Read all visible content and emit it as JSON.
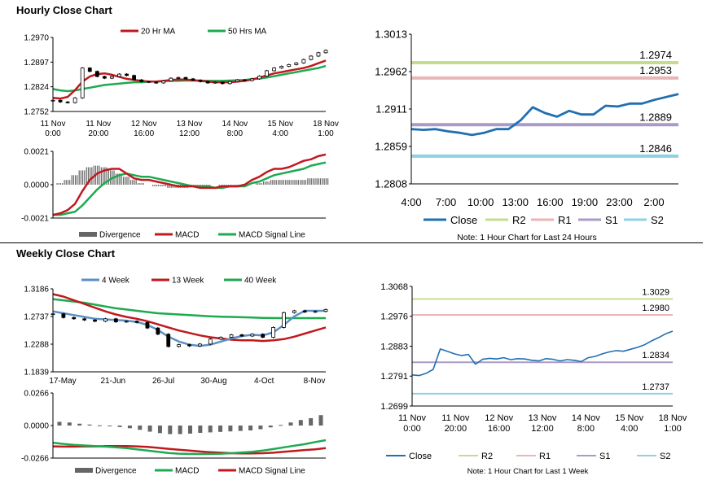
{
  "sections": {
    "hourly_title": "Hourly Close Chart",
    "weekly_title": "Weekly Close Chart"
  },
  "colors": {
    "close": "#1f6fb2",
    "ma20": "#c0191e",
    "ma50": "#1daa50",
    "r2": "#c5dc8e",
    "r1": "#e9b6b6",
    "s1": "#a99ac8",
    "s2": "#8fd0e3",
    "divergence": "#666666",
    "candle": "#000000"
  },
  "chart_data": [
    {
      "id": "hourly-price",
      "type": "candlestick",
      "ylim": [
        1.2752,
        1.297
      ],
      "yticks": [
        "1.2970",
        "1.2897",
        "1.2824",
        "1.2752"
      ],
      "xticks": [
        [
          "11 Nov",
          "0:00"
        ],
        [
          "11 Nov",
          "20:00"
        ],
        [
          "12 Nov",
          "16:00"
        ],
        [
          "13 Nov",
          "12:00"
        ],
        [
          "14 Nov",
          "8:00"
        ],
        [
          "15 Nov",
          "4:00"
        ],
        [
          "18 Nov",
          "1:00"
        ]
      ],
      "legend": [
        "20 Hr MA",
        "50 Hrs MA"
      ],
      "close": [
        1.2785,
        1.278,
        1.2778,
        1.2792,
        1.288,
        1.287,
        1.2855,
        1.285,
        1.2855,
        1.2862,
        1.2858,
        1.2845,
        1.284,
        1.2838,
        1.2836,
        1.2842,
        1.285,
        1.2852,
        1.2848,
        1.2844,
        1.284,
        1.2836,
        1.2838,
        1.2834,
        1.284,
        1.2845,
        1.2843,
        1.2848,
        1.2856,
        1.2872,
        1.288,
        1.2885,
        1.289,
        1.2895,
        1.2905,
        1.2915,
        1.2925,
        1.2932
      ],
      "ma20": [
        1.2792,
        1.279,
        1.2795,
        1.2815,
        1.284,
        1.2855,
        1.2862,
        1.2864,
        1.286,
        1.2854,
        1.2848,
        1.2845,
        1.2842,
        1.284,
        1.284,
        1.2842,
        1.2845,
        1.2846,
        1.2846,
        1.2844,
        1.2842,
        1.284,
        1.2838,
        1.2838,
        1.2838,
        1.284,
        1.2842,
        1.2846,
        1.2852,
        1.2858,
        1.2864,
        1.2868,
        1.2872,
        1.2876,
        1.288,
        1.2886,
        1.2894,
        1.2902
      ],
      "ma50": [
        1.2818,
        1.2814,
        1.2812,
        1.2814,
        1.2818,
        1.2822,
        1.2826,
        1.283,
        1.2832,
        1.2834,
        1.2836,
        1.2838,
        1.2838,
        1.284,
        1.284,
        1.2841,
        1.2842,
        1.2842,
        1.2843,
        1.2843,
        1.2843,
        1.2842,
        1.2842,
        1.2842,
        1.2843,
        1.2844,
        1.2845,
        1.2847,
        1.2849,
        1.2852,
        1.2856,
        1.286,
        1.2864,
        1.2868,
        1.2872,
        1.2876,
        1.288,
        1.2886
      ]
    },
    {
      "id": "hourly-macd",
      "type": "line+bar",
      "ylim": [
        -0.0021,
        0.0021
      ],
      "yticks": [
        "0.0021",
        "0.0000",
        "-0.0021"
      ],
      "legend": [
        "Divergence",
        "MACD",
        "MACD Signal Line"
      ],
      "divergence": [
        0.0,
        0.0001,
        0.0003,
        0.0006,
        0.0009,
        0.0011,
        0.0012,
        0.0011,
        0.0009,
        0.0007,
        0.0005,
        0.0003,
        0.0001,
        0.0,
        -0.0001,
        -0.0001,
        -0.0002,
        -0.0002,
        -0.0002,
        -0.0001,
        -0.0001,
        -0.0001,
        0.0,
        -0.0001,
        -0.0001,
        -0.0001,
        -0.0001,
        0.0,
        0.0001,
        0.0002,
        0.0003,
        0.0003,
        0.0003,
        0.0003,
        0.0003,
        0.0004,
        0.0004,
        0.0004
      ],
      "macd": [
        -0.0019,
        -0.0018,
        -0.0016,
        -0.0012,
        -0.0004,
        0.0003,
        0.0007,
        0.0009,
        0.001,
        0.001,
        0.0007,
        0.0004,
        0.0003,
        0.0003,
        0.0002,
        0.0001,
        0.0,
        -0.0001,
        -0.0001,
        -0.0001,
        -0.0002,
        -0.0002,
        -0.0002,
        -0.0001,
        -0.0001,
        -0.0001,
        0.0,
        0.0003,
        0.0005,
        0.0008,
        0.001,
        0.001,
        0.0011,
        0.0013,
        0.0015,
        0.0016,
        0.0018,
        0.0019
      ],
      "signal": [
        -0.0019,
        -0.0019,
        -0.0018,
        -0.0017,
        -0.0013,
        -0.0008,
        -0.0003,
        0.0001,
        0.0004,
        0.0006,
        0.0007,
        0.0006,
        0.0005,
        0.0005,
        0.0004,
        0.0003,
        0.0002,
        0.0001,
        0.0,
        -0.0001,
        -0.0001,
        -0.0001,
        -0.0002,
        -0.0002,
        -0.0001,
        -0.0001,
        -0.0001,
        0.0001,
        0.0002,
        0.0004,
        0.0006,
        0.0007,
        0.0008,
        0.0009,
        0.001,
        0.0012,
        0.0013,
        0.0014
      ]
    },
    {
      "id": "hourly-24h",
      "type": "line",
      "ylim": [
        1.2808,
        1.3013
      ],
      "yticks": [
        "1.3013",
        "1.2962",
        "1.2911",
        "1.2859",
        "1.2808"
      ],
      "xticks": [
        "4:00",
        "7:00",
        "10:00",
        "13:00",
        "16:00",
        "19:00",
        "23:00",
        "2:00"
      ],
      "legend": [
        "Close",
        "R2",
        "R1",
        "S1",
        "S2"
      ],
      "note": "Note: 1 Hour Chart for Last 24 Hours",
      "levels": {
        "R2": 1.2974,
        "R1": 1.2953,
        "S1": 1.2889,
        "S2": 1.2846
      },
      "level_labels": {
        "R2": "1.2974",
        "R1": "1.2953",
        "S1": "1.2889",
        "S2": "1.2846"
      },
      "close": [
        1.2883,
        1.2882,
        1.2883,
        1.288,
        1.2878,
        1.2875,
        1.2878,
        1.2883,
        1.2883,
        1.2895,
        1.2913,
        1.2905,
        1.29,
        1.2908,
        1.2903,
        1.2903,
        1.2915,
        1.2914,
        1.2918,
        1.2918,
        1.2923,
        1.2927,
        1.2931
      ]
    },
    {
      "id": "weekly-price",
      "type": "candlestick",
      "ylim": [
        1.1839,
        1.3186
      ],
      "yticks": [
        "1.3186",
        "1.2737",
        "1.2288",
        "1.1839"
      ],
      "xticks": [
        "17-May",
        "21-Jun",
        "26-Jul",
        "30-Aug",
        "4-Oct",
        "8-Nov"
      ],
      "legend": [
        "4 Week",
        "13 Week",
        "40 Week"
      ],
      "close": [
        1.278,
        1.272,
        1.27,
        1.268,
        1.266,
        1.27,
        1.265,
        1.266,
        1.264,
        1.255,
        1.245,
        1.225,
        1.228,
        1.226,
        1.229,
        1.237,
        1.24,
        1.244,
        1.242,
        1.245,
        1.24,
        1.256,
        1.28,
        1.283,
        1.281,
        1.282,
        1.285
      ],
      "ma4": [
        1.282,
        1.279,
        1.276,
        1.273,
        1.27,
        1.269,
        1.268,
        1.267,
        1.265,
        1.26,
        1.252,
        1.241,
        1.233,
        1.228,
        1.226,
        1.228,
        1.233,
        1.238,
        1.242,
        1.244,
        1.243,
        1.248,
        1.26,
        1.274,
        1.283,
        1.283,
        1.283
      ],
      "ma13": [
        1.31,
        1.306,
        1.3,
        1.294,
        1.288,
        1.282,
        1.277,
        1.273,
        1.27,
        1.266,
        1.261,
        1.256,
        1.251,
        1.247,
        1.243,
        1.24,
        1.238,
        1.236,
        1.235,
        1.235,
        1.234,
        1.235,
        1.237,
        1.241,
        1.246,
        1.251,
        1.256
      ],
      "ma40": [
        1.302,
        1.3,
        1.298,
        1.296,
        1.293,
        1.29,
        1.287,
        1.285,
        1.283,
        1.281,
        1.279,
        1.278,
        1.277,
        1.276,
        1.275,
        1.274,
        1.2735,
        1.273,
        1.2725,
        1.272,
        1.2715,
        1.2712,
        1.271,
        1.271,
        1.271,
        1.271,
        1.271
      ]
    },
    {
      "id": "weekly-macd",
      "type": "line+bar",
      "ylim": [
        -0.0266,
        0.0266
      ],
      "yticks": [
        "0.0266",
        "0.0000",
        "-0.0266"
      ],
      "legend": [
        "Divergence",
        "MACD",
        "MACD Signal Line"
      ],
      "divergence": [
        0.003,
        0.0025,
        0.0015,
        0.0008,
        0.0002,
        -0.0005,
        -0.0012,
        -0.0022,
        -0.0035,
        -0.005,
        -0.0062,
        -0.007,
        -0.007,
        -0.0066,
        -0.006,
        -0.0056,
        -0.0052,
        -0.0048,
        -0.0044,
        -0.004,
        -0.003,
        -0.0015,
        0.0005,
        0.0025,
        0.0045,
        0.006,
        0.0085
      ],
      "macd": [
        -0.014,
        -0.015,
        -0.0158,
        -0.0163,
        -0.0168,
        -0.0172,
        -0.0178,
        -0.0185,
        -0.0195,
        -0.0205,
        -0.0215,
        -0.0225,
        -0.023,
        -0.0232,
        -0.0233,
        -0.0232,
        -0.023,
        -0.0226,
        -0.022,
        -0.0214,
        -0.0205,
        -0.0192,
        -0.0178,
        -0.0165,
        -0.0152,
        -0.0135,
        -0.012
      ],
      "signal": [
        -0.017,
        -0.0172,
        -0.0172,
        -0.017,
        -0.017,
        -0.0168,
        -0.0168,
        -0.0168,
        -0.017,
        -0.0175,
        -0.0182,
        -0.019,
        -0.0198,
        -0.0205,
        -0.0212,
        -0.0218,
        -0.0222,
        -0.0226,
        -0.0228,
        -0.0228,
        -0.0226,
        -0.0222,
        -0.0215,
        -0.0208,
        -0.02,
        -0.0195,
        -0.0185
      ]
    },
    {
      "id": "weekly-1w",
      "type": "line",
      "ylim": [
        1.2699,
        1.3068
      ],
      "yticks": [
        "1.3068",
        "1.2976",
        "1.2883",
        "1.2791",
        "1.2699"
      ],
      "xticks": [
        [
          "11 Nov",
          "0:00"
        ],
        [
          "11 Nov",
          "20:00"
        ],
        [
          "12 Nov",
          "16:00"
        ],
        [
          "13 Nov",
          "12:00"
        ],
        [
          "14 Nov",
          "8:00"
        ],
        [
          "15 Nov",
          "4:00"
        ],
        [
          "18 Nov",
          "1:00"
        ]
      ],
      "legend": [
        "Close",
        "R2",
        "R1",
        "S1",
        "S2"
      ],
      "note": "Note: 1 Hour Chart for Last 1 Week",
      "levels": {
        "R2": 1.3029,
        "R1": 1.298,
        "S1": 1.2834,
        "S2": 1.2737
      },
      "level_labels": {
        "R2": "1.3029",
        "R1": "1.2980",
        "S1": "1.2834",
        "S2": "1.2737"
      },
      "close": [
        1.2795,
        1.2793,
        1.28,
        1.2812,
        1.2875,
        1.2868,
        1.286,
        1.2855,
        1.2858,
        1.2828,
        1.2843,
        1.2846,
        1.2844,
        1.2848,
        1.2842,
        1.2845,
        1.2844,
        1.284,
        1.2838,
        1.2845,
        1.2843,
        1.2838,
        1.2842,
        1.284,
        1.2836,
        1.2848,
        1.2852,
        1.286,
        1.2866,
        1.287,
        1.2868,
        1.2874,
        1.288,
        1.2888,
        1.29,
        1.291,
        1.2922,
        1.293
      ]
    }
  ]
}
